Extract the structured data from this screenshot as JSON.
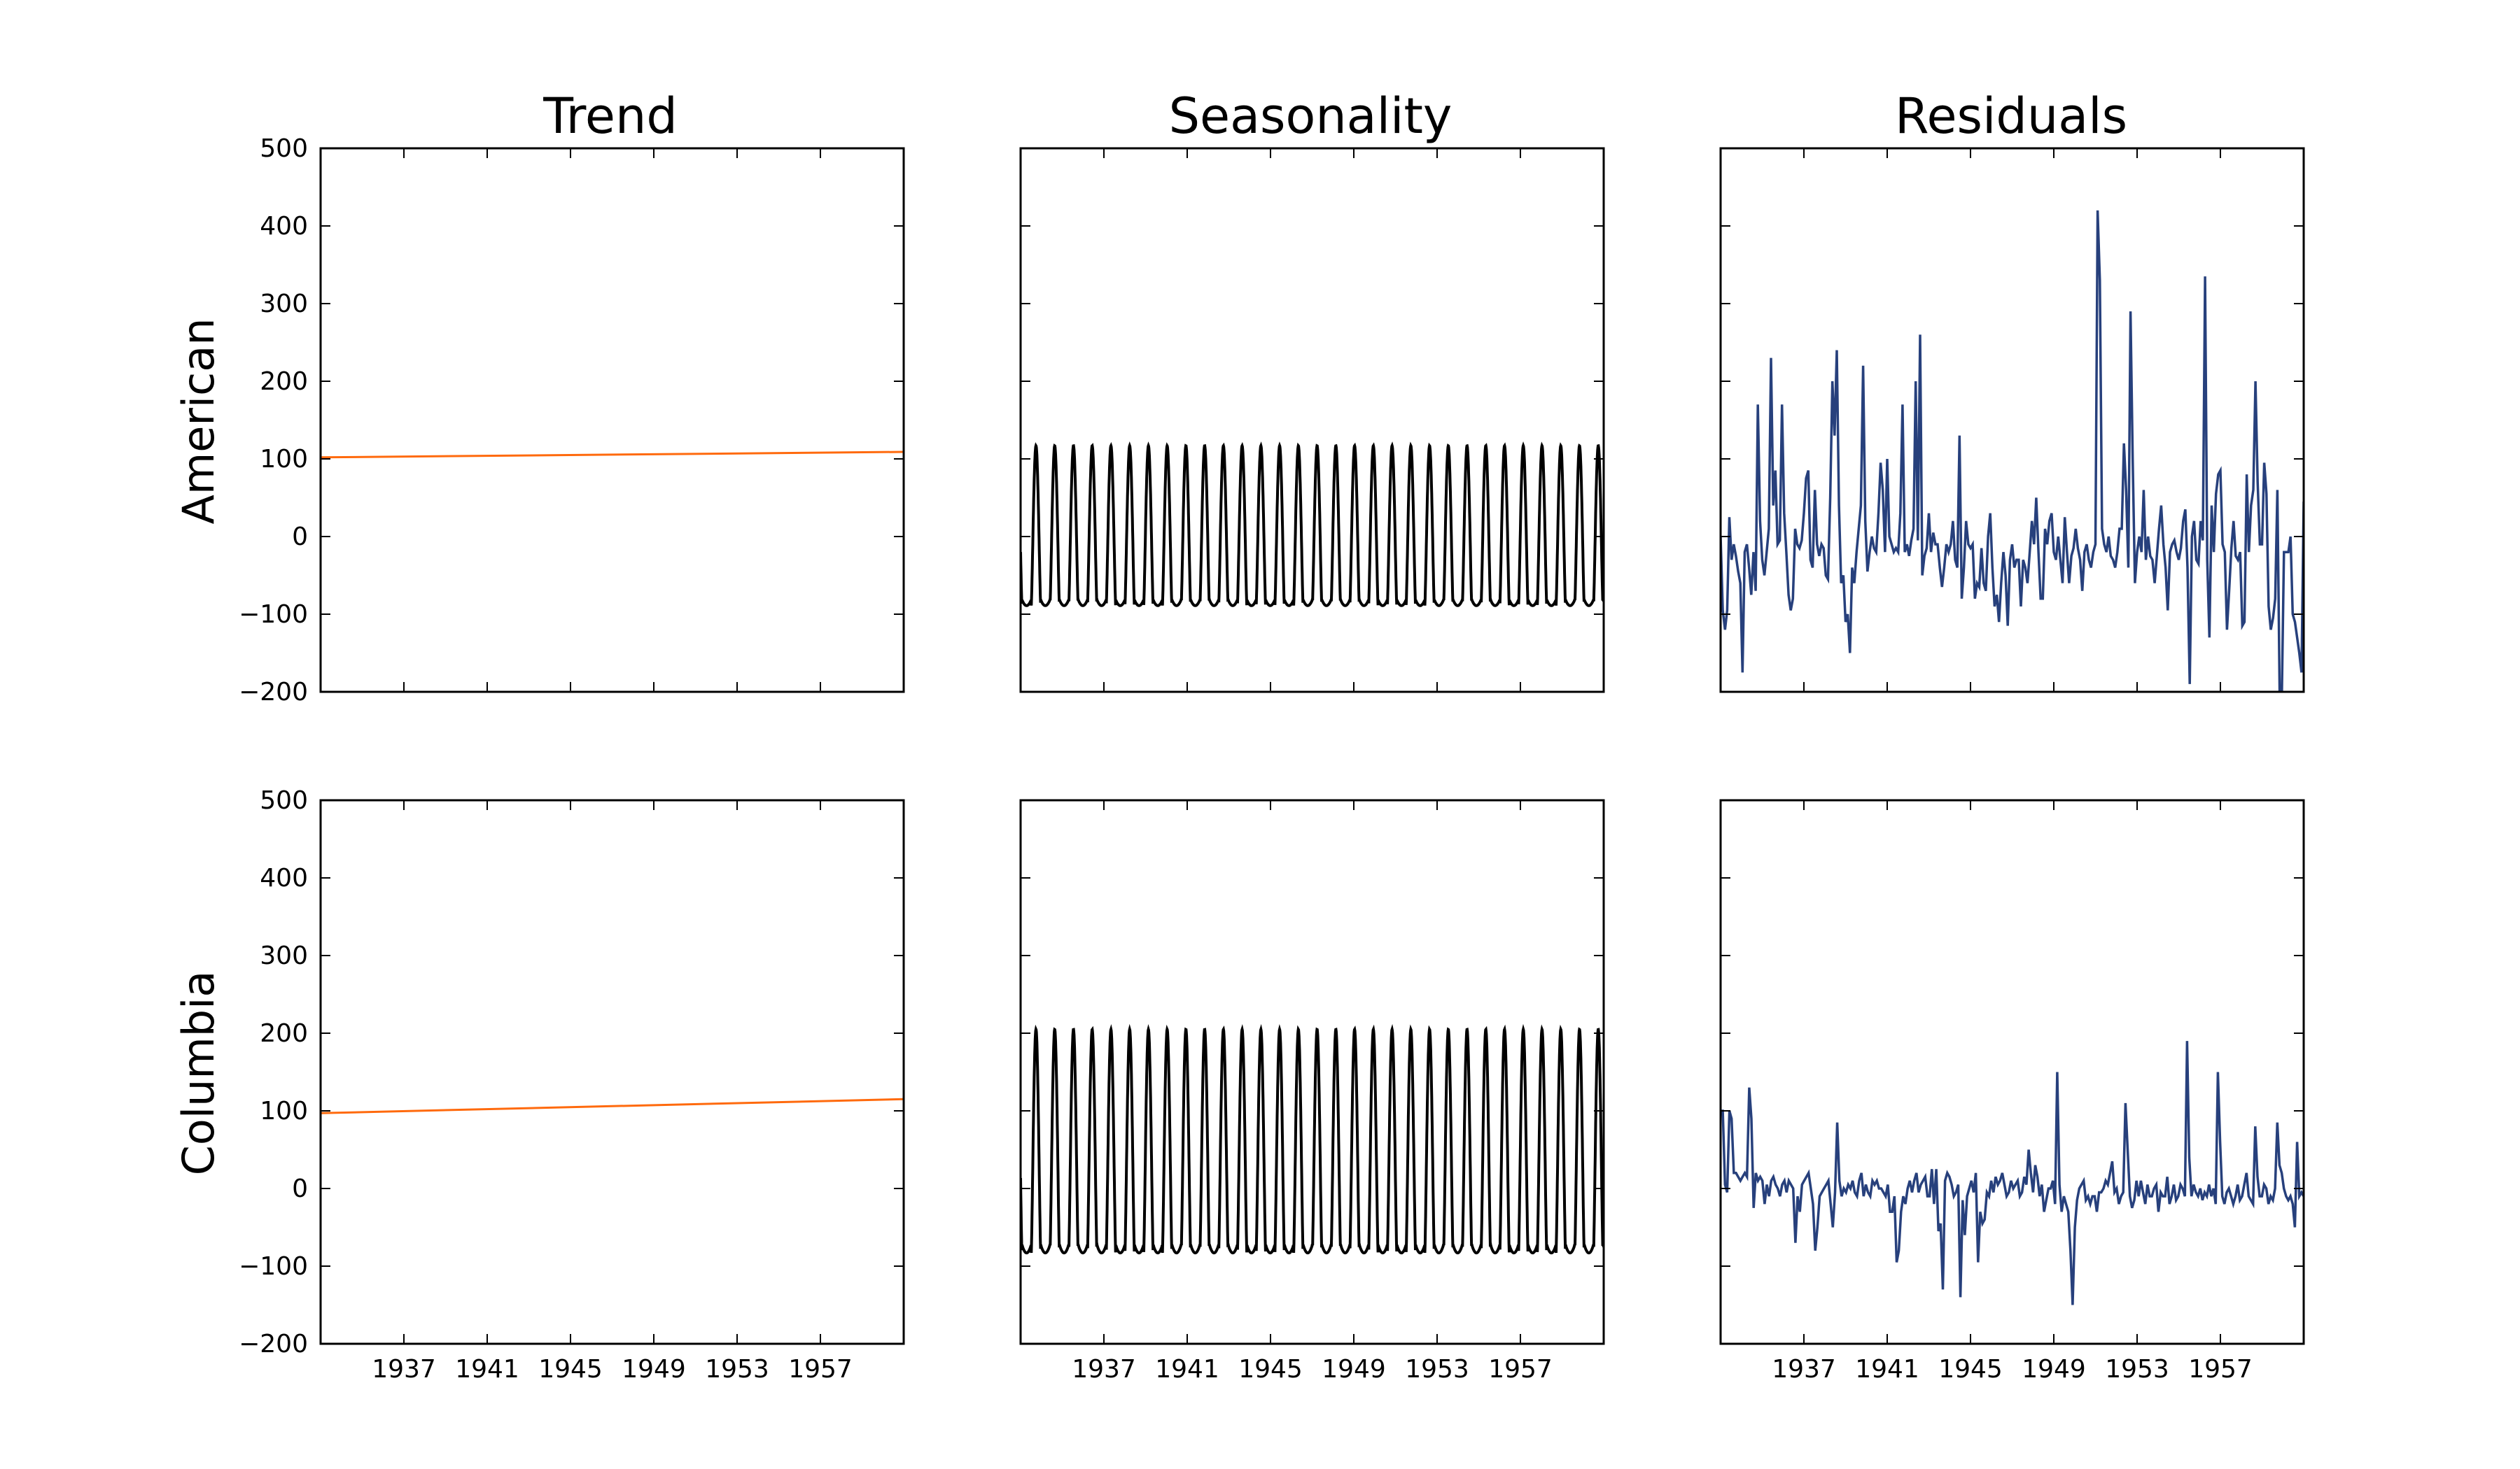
{
  "figure": {
    "column_titles": [
      "Trend",
      "Seasonality",
      "Residuals"
    ],
    "row_labels": [
      "American",
      "Columbia"
    ],
    "colors": {
      "trend": "#ff6a0d",
      "seasonality": "#000000",
      "residuals": "#27407c",
      "axes": "#000000"
    }
  },
  "chart_data": {
    "type": "line",
    "layout": "2x3 grid of subplots sharing x and y axes",
    "x_range": [
      1933.0,
      1961.0
    ],
    "x_ticks": [
      1937,
      1941,
      1945,
      1949,
      1953,
      1957
    ],
    "y_range": [
      -200,
      500
    ],
    "y_ticks": [
      -200,
      -100,
      0,
      100,
      200,
      300,
      400,
      500
    ],
    "y_tick_labels": [
      "−200",
      "−100",
      "0",
      "100",
      "200",
      "300",
      "400",
      "500"
    ],
    "grid": false,
    "panels": [
      {
        "row": "American",
        "column": "Trend",
        "type": "line",
        "series": [
          {
            "x": [
              1933.0,
              1961.0
            ],
            "y": [
              102,
              109
            ]
          }
        ]
      },
      {
        "row": "American",
        "column": "Seasonality",
        "type": "line",
        "series": [
          {
            "periodic": true,
            "start": 1933.0,
            "end": 1961.0,
            "period_years": 0.9,
            "max": 117,
            "min": -89
          }
        ]
      },
      {
        "row": "American",
        "column": "Residuals",
        "type": "line",
        "series": [
          {
            "x_start": 1933.0,
            "x_end": 1961.0,
            "y": [
              0,
              -95,
              -120,
              -95,
              25,
              -30,
              -10,
              -25,
              -45,
              -60,
              -175,
              -20,
              -10,
              -40,
              -75,
              -20,
              -70,
              170,
              20,
              -30,
              -50,
              -20,
              10,
              230,
              40,
              85,
              -10,
              -5,
              170,
              30,
              -20,
              -75,
              -95,
              -80,
              10,
              -10,
              -15,
              -5,
              30,
              75,
              85,
              -30,
              -40,
              60,
              -10,
              -25,
              -10,
              -15,
              -50,
              -55,
              50,
              200,
              130,
              240,
              40,
              -60,
              -50,
              -110,
              -100,
              -150,
              -40,
              -60,
              -20,
              10,
              40,
              220,
              20,
              -45,
              -20,
              0,
              -15,
              -20,
              30,
              95,
              60,
              -20,
              100,
              0,
              -10,
              -20,
              -15,
              -20,
              30,
              170,
              -20,
              -10,
              -25,
              -5,
              10,
              200,
              -5,
              260,
              -50,
              -25,
              -15,
              30,
              -20,
              5,
              -10,
              -10,
              -40,
              -65,
              -40,
              -10,
              -20,
              -10,
              20,
              -30,
              -40,
              130,
              -80,
              -40,
              20,
              -10,
              -15,
              -10,
              -80,
              -60,
              -65,
              -15,
              -60,
              -70,
              0,
              30,
              -40,
              -90,
              -75,
              -110,
              -60,
              -20,
              -50,
              -115,
              -30,
              -10,
              -40,
              -30,
              -30,
              -90,
              -30,
              -40,
              -60,
              -20,
              20,
              -10,
              50,
              -20,
              -80,
              -80,
              10,
              -10,
              20,
              30,
              -20,
              -30,
              0,
              -30,
              -60,
              25,
              -20,
              -60,
              -25,
              -15,
              10,
              -15,
              -30,
              -70,
              -20,
              -10,
              -30,
              -40,
              -20,
              -10,
              420,
              330,
              10,
              -10,
              -20,
              0,
              -25,
              -30,
              -40,
              -20,
              10,
              10,
              120,
              60,
              -40,
              290,
              100,
              -60,
              -20,
              0,
              -20,
              60,
              -30,
              0,
              -25,
              -30,
              -60,
              -25,
              10,
              40,
              -10,
              -40,
              -95,
              -20,
              -10,
              -5,
              -20,
              -30,
              -15,
              20,
              35,
              -40,
              -190,
              0,
              20,
              -30,
              -35,
              20,
              -5,
              335,
              -30,
              -130,
              40,
              -20,
              55,
              80,
              85,
              -10,
              -20,
              -120,
              -70,
              -15,
              20,
              -25,
              -30,
              -20,
              -115,
              -110,
              80,
              -20,
              40,
              60,
              200,
              70,
              -10,
              -10,
              95,
              55,
              -90,
              -120,
              -105,
              -80,
              60,
              -200,
              -210,
              -20,
              -20,
              -20,
              0,
              -100,
              -110,
              -130,
              -150,
              -175,
              45
            ]
          }
        ]
      },
      {
        "row": "Columbia",
        "column": "Trend",
        "type": "line",
        "series": [
          {
            "x": [
              1933.0,
              1961.0
            ],
            "y": [
              97,
              115
            ]
          }
        ]
      },
      {
        "row": "Columbia",
        "column": "Seasonality",
        "type": "line",
        "series": [
          {
            "periodic": true,
            "start": 1933.0,
            "end": 1961.0,
            "period_years": 0.9,
            "max": 205,
            "min": -83
          }
        ]
      },
      {
        "row": "Columbia",
        "column": "Residuals",
        "type": "line",
        "series": [
          {
            "x_start": 1933.0,
            "x_end": 1961.0,
            "y": [
              100,
              100,
              5,
              -5,
              100,
              90,
              20,
              20,
              15,
              10,
              15,
              20,
              15,
              130,
              90,
              -25,
              20,
              10,
              15,
              10,
              -20,
              5,
              -10,
              10,
              15,
              5,
              0,
              -10,
              5,
              10,
              -5,
              10,
              5,
              0,
              -70,
              -10,
              -30,
              5,
              10,
              15,
              20,
              0,
              -20,
              -80,
              -50,
              -10,
              -5,
              0,
              5,
              10,
              -20,
              -50,
              -5,
              85,
              10,
              -10,
              0,
              -5,
              5,
              0,
              10,
              -5,
              -10,
              10,
              20,
              -10,
              5,
              -5,
              -10,
              10,
              5,
              10,
              0,
              0,
              -5,
              -10,
              5,
              -30,
              -30,
              -10,
              -95,
              -80,
              -30,
              -10,
              -20,
              0,
              10,
              -5,
              10,
              20,
              -5,
              5,
              10,
              15,
              -10,
              -10,
              25,
              -20,
              25,
              -55,
              -45,
              -130,
              10,
              20,
              15,
              5,
              -10,
              -5,
              5,
              -140,
              -15,
              -60,
              -10,
              0,
              10,
              -5,
              20,
              -95,
              -30,
              -45,
              -40,
              -5,
              -10,
              10,
              -5,
              15,
              5,
              10,
              20,
              5,
              -10,
              -5,
              10,
              0,
              5,
              10,
              -10,
              -5,
              15,
              5,
              50,
              20,
              -5,
              30,
              15,
              -10,
              5,
              -30,
              -15,
              0,
              0,
              10,
              -20,
              150,
              5,
              -30,
              -10,
              -20,
              -30,
              -80,
              -150,
              -50,
              -15,
              0,
              5,
              10,
              -15,
              -10,
              -20,
              -10,
              -10,
              -30,
              -5,
              -5,
              0,
              10,
              5,
              20,
              35,
              -5,
              0,
              -20,
              -10,
              -5,
              110,
              50,
              -10,
              -25,
              -15,
              10,
              -10,
              10,
              -5,
              -20,
              5,
              -10,
              -10,
              0,
              5,
              -30,
              -5,
              -10,
              -10,
              15,
              -20,
              -10,
              5,
              -15,
              -10,
              5,
              0,
              -10,
              190,
              40,
              -10,
              5,
              -5,
              -10,
              0,
              -15,
              -5,
              -10,
              5,
              -10,
              0,
              -20,
              150,
              60,
              -10,
              -20,
              -5,
              0,
              -10,
              -20,
              -10,
              5,
              -15,
              -10,
              5,
              20,
              -10,
              -15,
              -20,
              80,
              15,
              -10,
              -10,
              5,
              0,
              -20,
              -10,
              -15,
              0,
              85,
              30,
              20,
              0,
              -10,
              -15,
              -10,
              -20,
              -50,
              60,
              -10,
              -5,
              -10
            ]
          }
        ]
      }
    ]
  }
}
